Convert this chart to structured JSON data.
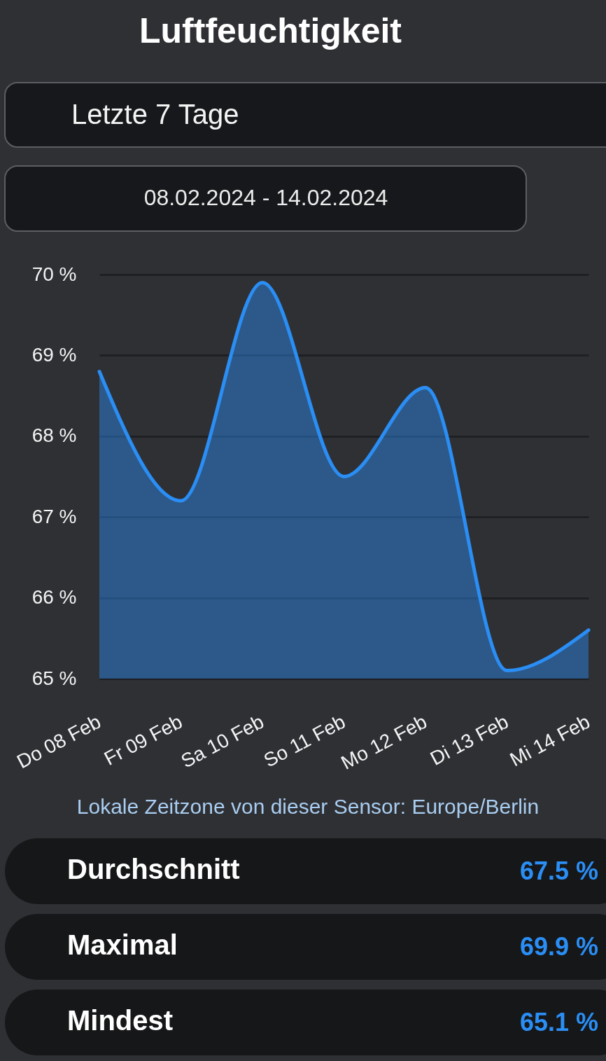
{
  "chart_data": {
    "type": "area",
    "title": "Luftfeuchtigkeit",
    "categories": [
      "Do 08 Feb",
      "Fr 09 Feb",
      "Sa 10 Feb",
      "So 11 Feb",
      "Mo 12 Feb",
      "Di 13 Feb",
      "Mi 14 Feb"
    ],
    "series": [
      {
        "color": "#2a8ef5",
        "values": [
          68.8,
          67.2,
          69.9,
          67.5,
          68.6,
          65.1,
          65.6
        ]
      }
    ],
    "ylim": [
      65,
      70
    ],
    "yticks": [
      {
        "value": 65,
        "label": "65 %"
      },
      {
        "value": 66,
        "label": "66 %"
      },
      {
        "value": 67,
        "label": "67 %"
      },
      {
        "value": 68,
        "label": "68 %"
      },
      {
        "value": 69,
        "label": "69 %"
      },
      {
        "value": 70,
        "label": "70 %"
      }
    ],
    "grid": "y",
    "line_style": "solid",
    "annotations": [
      "Letzte 7 Tage",
      "08.02.2024 - 14.02.2024",
      "Lokale Zeitzone von dieser Sensor: Europe/Berlin",
      "Durchschnitt",
      "67.5 %",
      "Maximal",
      "69.9 %",
      "Mindest",
      "65.1 %"
    ]
  }
}
